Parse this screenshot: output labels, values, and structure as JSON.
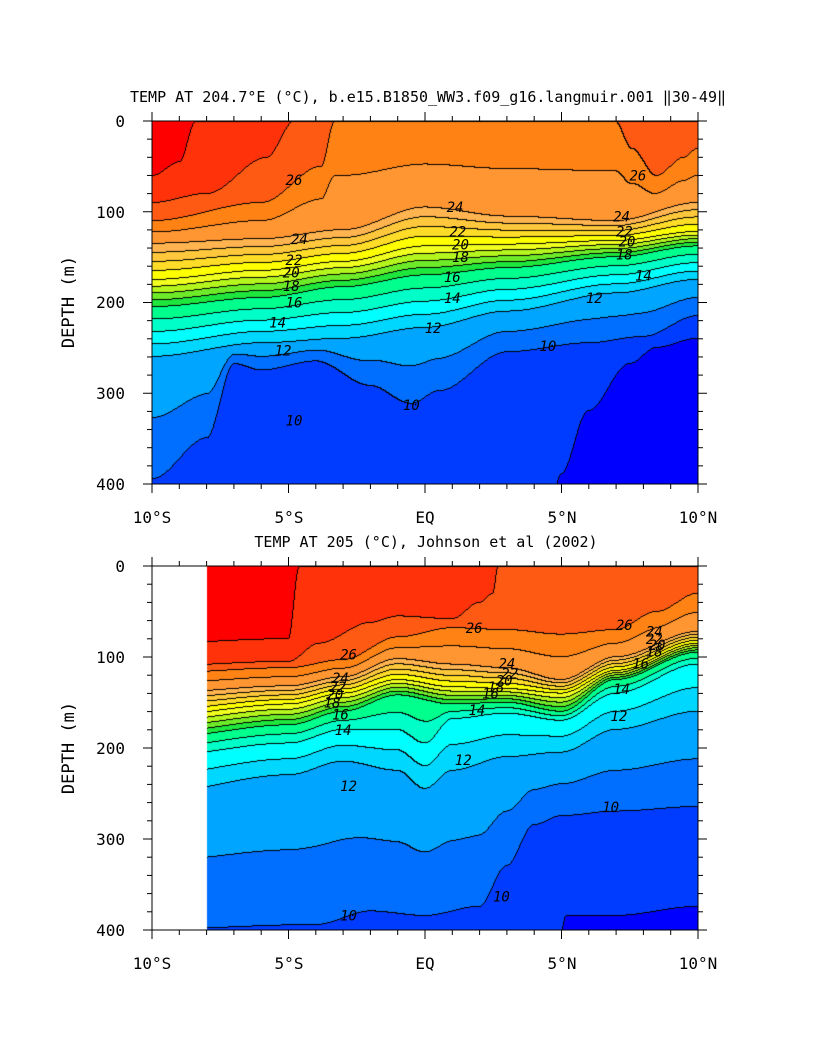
{
  "chart_data": [
    {
      "type": "contour",
      "title": "TEMP AT 204.7°E (°C), b.e15.B1850_WW3.f09_g16.langmuir.001 ‖30-49‖",
      "xlabel": "",
      "ylabel": "DEPTH (m)",
      "xlim": [
        -10,
        10
      ],
      "ylim": [
        400,
        0
      ],
      "x_ticks": [
        -10,
        -5,
        0,
        5,
        10
      ],
      "x_tick_labels": [
        "10°S",
        "5°S",
        "EQ",
        "5°N",
        "10°N"
      ],
      "y_ticks": [
        0,
        100,
        200,
        300,
        400
      ],
      "y_tick_labels": [
        "0",
        "100",
        "200",
        "300",
        "400"
      ],
      "data_xmin": -10,
      "levels": [
        9,
        10,
        11,
        12,
        13,
        14,
        15,
        16,
        17,
        18,
        19,
        20,
        21,
        22,
        23,
        24,
        25,
        26,
        27,
        28
      ],
      "contour_labels": [
        {
          "text": "26",
          "x": -4.8,
          "y": 65
        },
        {
          "text": "24",
          "x": 1.1,
          "y": 95
        },
        {
          "text": "26",
          "x": 7.8,
          "y": 60
        },
        {
          "text": "24",
          "x": 7.2,
          "y": 105
        },
        {
          "text": "24",
          "x": -4.6,
          "y": 130
        },
        {
          "text": "22",
          "x": 1.2,
          "y": 122
        },
        {
          "text": "22",
          "x": 7.3,
          "y": 122
        },
        {
          "text": "20",
          "x": 1.3,
          "y": 136
        },
        {
          "text": "20",
          "x": 7.4,
          "y": 133
        },
        {
          "text": "22",
          "x": -4.8,
          "y": 153
        },
        {
          "text": "18",
          "x": 1.3,
          "y": 150
        },
        {
          "text": "18",
          "x": 7.3,
          "y": 147
        },
        {
          "text": "20",
          "x": -4.9,
          "y": 167
        },
        {
          "text": "18",
          "x": -4.9,
          "y": 182
        },
        {
          "text": "16",
          "x": 1.0,
          "y": 172
        },
        {
          "text": "14",
          "x": 8.0,
          "y": 170
        },
        {
          "text": "16",
          "x": -4.8,
          "y": 200
        },
        {
          "text": "14",
          "x": 1.0,
          "y": 195
        },
        {
          "text": "12",
          "x": 6.2,
          "y": 195
        },
        {
          "text": "14",
          "x": -5.4,
          "y": 222
        },
        {
          "text": "12",
          "x": 0.3,
          "y": 228
        },
        {
          "text": "10",
          "x": 4.5,
          "y": 248
        },
        {
          "text": "12",
          "x": -5.2,
          "y": 253
        },
        {
          "text": "10",
          "x": -0.5,
          "y": 313
        },
        {
          "text": "10",
          "x": -4.8,
          "y": 330
        }
      ]
    },
    {
      "type": "contour",
      "title": "TEMP AT 205 (°C), Johnson et al (2002)",
      "xlabel": "",
      "ylabel": "DEPTH (m)",
      "xlim": [
        -10,
        10
      ],
      "ylim": [
        400,
        0
      ],
      "x_ticks": [
        -10,
        -5,
        0,
        5,
        10
      ],
      "x_tick_labels": [
        "10°S",
        "5°S",
        "EQ",
        "5°N",
        "10°N"
      ],
      "y_ticks": [
        0,
        100,
        200,
        300,
        400
      ],
      "y_tick_labels": [
        "0",
        "100",
        "200",
        "300",
        "400"
      ],
      "data_xmin": -8,
      "levels": [
        9,
        10,
        11,
        12,
        13,
        14,
        15,
        16,
        17,
        18,
        19,
        20,
        21,
        22,
        23,
        24,
        25,
        26,
        27,
        28
      ],
      "contour_labels": [
        {
          "text": "26",
          "x": 1.8,
          "y": 68
        },
        {
          "text": "26",
          "x": -2.8,
          "y": 97
        },
        {
          "text": "26",
          "x": 7.3,
          "y": 65
        },
        {
          "text": "24",
          "x": 8.4,
          "y": 72
        },
        {
          "text": "22",
          "x": 8.4,
          "y": 80
        },
        {
          "text": "20",
          "x": 8.5,
          "y": 87
        },
        {
          "text": "18",
          "x": 8.4,
          "y": 94
        },
        {
          "text": "16",
          "x": 7.9,
          "y": 107
        },
        {
          "text": "24",
          "x": 3.0,
          "y": 107
        },
        {
          "text": "22",
          "x": 3.1,
          "y": 118
        },
        {
          "text": "20",
          "x": 2.9,
          "y": 126
        },
        {
          "text": "18",
          "x": 2.6,
          "y": 133
        },
        {
          "text": "16",
          "x": 2.4,
          "y": 140
        },
        {
          "text": "24",
          "x": -3.1,
          "y": 123
        },
        {
          "text": "22",
          "x": -3.2,
          "y": 133
        },
        {
          "text": "20",
          "x": -3.3,
          "y": 141
        },
        {
          "text": "18",
          "x": -3.4,
          "y": 150
        },
        {
          "text": "16",
          "x": -3.1,
          "y": 163
        },
        {
          "text": "14",
          "x": 1.9,
          "y": 158
        },
        {
          "text": "14",
          "x": 7.2,
          "y": 135
        },
        {
          "text": "14",
          "x": -3.0,
          "y": 180
        },
        {
          "text": "12",
          "x": 7.1,
          "y": 165
        },
        {
          "text": "12",
          "x": 1.4,
          "y": 213
        },
        {
          "text": "12",
          "x": -2.8,
          "y": 242
        },
        {
          "text": "10",
          "x": 6.8,
          "y": 265
        },
        {
          "text": "10",
          "x": 2.8,
          "y": 363
        },
        {
          "text": "10",
          "x": -2.8,
          "y": 384
        }
      ]
    }
  ]
}
